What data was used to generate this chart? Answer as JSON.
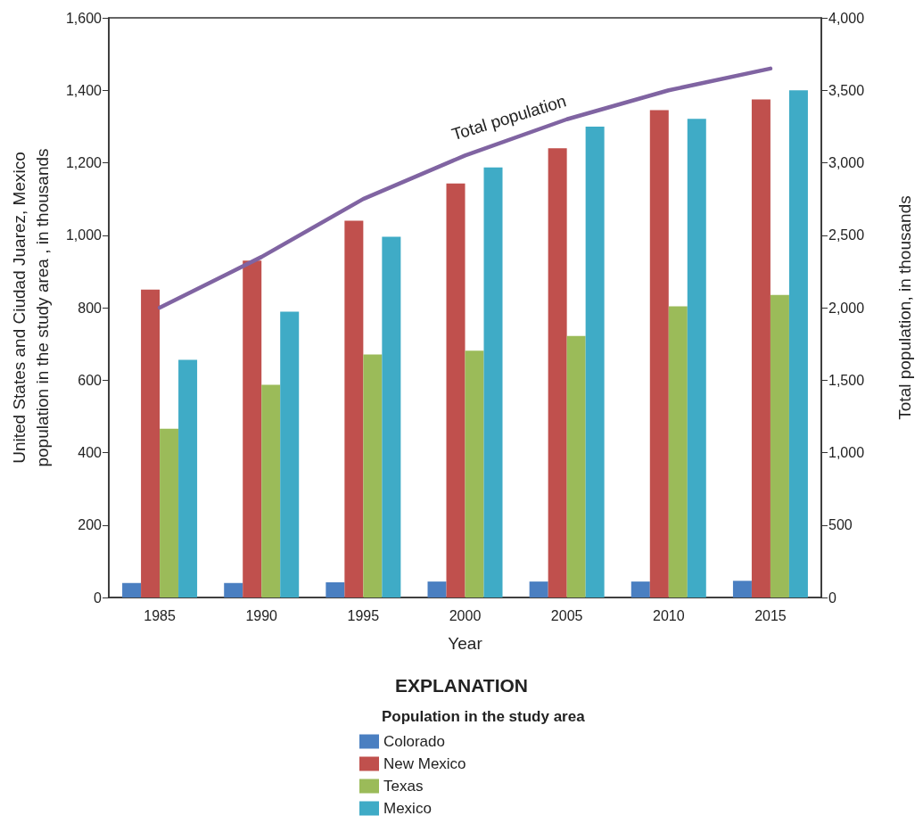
{
  "chart_data": {
    "type": "bar",
    "categories": [
      "1985",
      "1990",
      "1995",
      "2000",
      "2005",
      "2010",
      "2015"
    ],
    "xlabel": "Year",
    "ylabel": "United States and Ciudad Juarez, Mexico\npopulation in the study area , in thousands",
    "y2label": "Total population, in thousands",
    "legend_title": "Population in the study area",
    "annotations": [
      "EXPLANATION"
    ],
    "series": [
      {
        "name": "Colorado",
        "color": "#4a7fc1",
        "values": [
          40,
          40,
          42,
          44,
          44,
          44,
          46
        ]
      },
      {
        "name": "New Mexico",
        "color": "#c0504d",
        "values": [
          850,
          930,
          1040,
          1143,
          1240,
          1345,
          1375
        ]
      },
      {
        "name": "Texas",
        "color": "#9bbb59",
        "values": [
          466,
          587,
          671,
          681,
          722,
          804,
          835
        ]
      },
      {
        "name": "Mexico",
        "color": "#3fabc6",
        "values": [
          656,
          789,
          996,
          1187,
          1300,
          1321,
          1400
        ]
      },
      {
        "name": "Total population",
        "type": "line",
        "axis": "y2",
        "color": "#8064a2",
        "values": [
          2000,
          2350,
          2750,
          3050,
          3300,
          3500,
          3650
        ]
      }
    ],
    "ylim": [
      0,
      1600
    ],
    "yticks": [
      0,
      200,
      400,
      600,
      800,
      {
        "value": 1000,
        "label": "1,000"
      },
      {
        "value": 1200,
        "label": "1,200"
      },
      {
        "value": 1400,
        "label": "1,400"
      },
      {
        "value": 1600,
        "label": "1,600"
      }
    ],
    "y2lim": [
      0,
      4000
    ],
    "y2ticks": [
      0,
      500,
      {
        "value": 1000,
        "label": "1,000"
      },
      {
        "value": 1500,
        "label": "1,500"
      },
      {
        "value": 2000,
        "label": "2,000"
      },
      {
        "value": 2500,
        "label": "2,500"
      },
      {
        "value": 3000,
        "label": "3,000"
      },
      {
        "value": 3500,
        "label": "3,500"
      },
      {
        "value": 4000,
        "label": "4,000"
      }
    ],
    "grid": false,
    "legend": "bottom",
    "marker": "none"
  }
}
